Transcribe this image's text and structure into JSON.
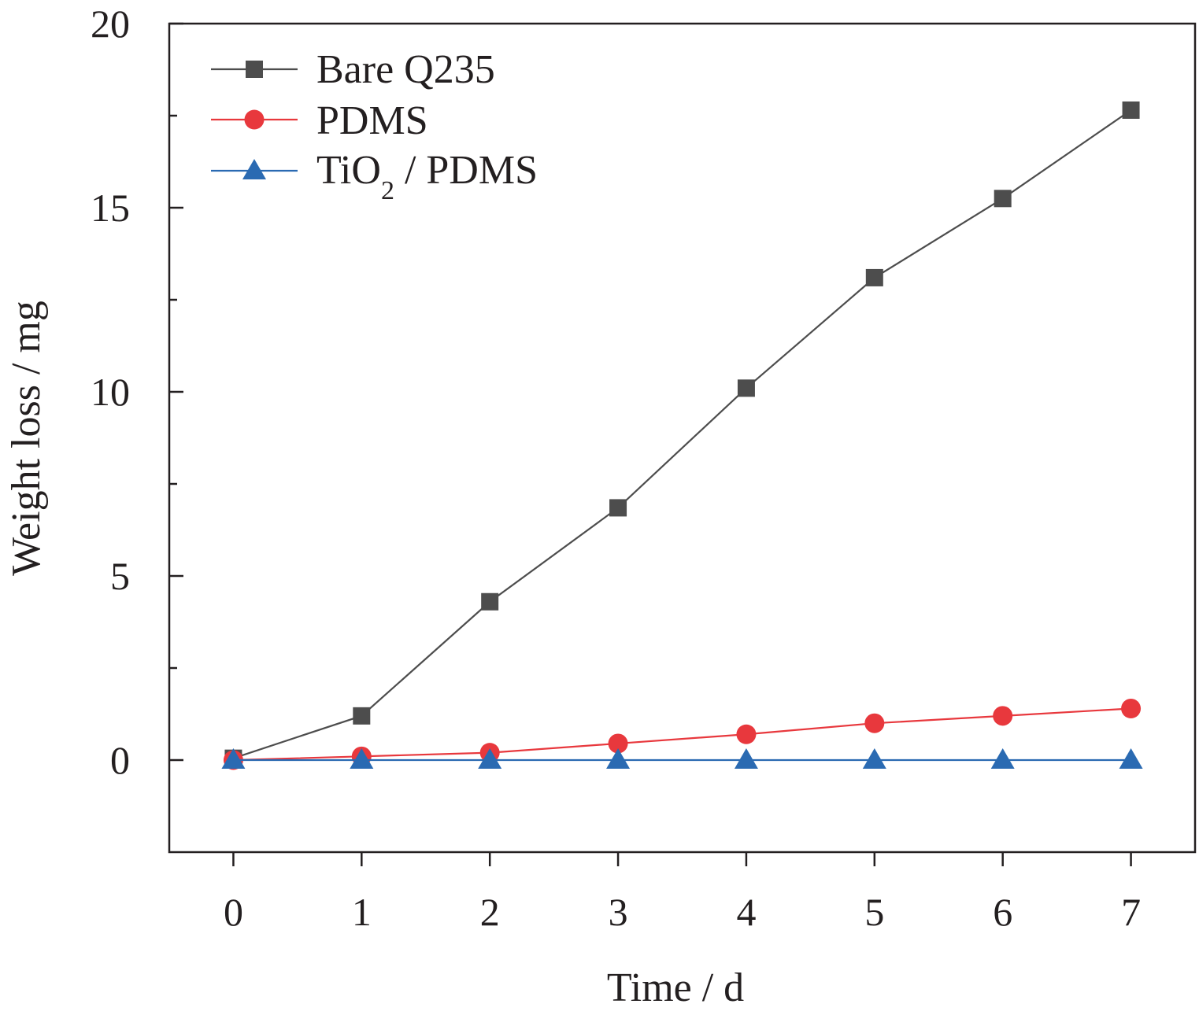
{
  "chart_data": {
    "type": "line",
    "title": "",
    "xlabel": "Time / d",
    "ylabel": "Weight loss / mg",
    "x": [
      0,
      1,
      2,
      3,
      4,
      5,
      6,
      7
    ],
    "xlim": [
      -0.5,
      7.5
    ],
    "ylim": [
      -2.5,
      20
    ],
    "xticks": [
      "0",
      "1",
      "2",
      "3",
      "4",
      "5",
      "6",
      "7"
    ],
    "yticks": [
      "0",
      "5",
      "10",
      "15",
      "20"
    ],
    "legend_position": "top-left",
    "series": [
      {
        "name": "Bare Q235",
        "marker": "square",
        "color": "#4d4d4d",
        "values": [
          0.05,
          1.2,
          4.3,
          6.85,
          10.1,
          13.1,
          15.25,
          17.65
        ]
      },
      {
        "name": "PDMS",
        "marker": "circle",
        "color": "#e8383d",
        "values": [
          0.0,
          0.1,
          0.2,
          0.45,
          0.7,
          1.0,
          1.2,
          1.4
        ]
      },
      {
        "name": "TiO2 / PDMS",
        "legend_base": "TiO",
        "legend_sub": "2",
        "legend_rest": " / PDMS",
        "marker": "triangle",
        "color": "#2a6ab2",
        "values": [
          0,
          0,
          0,
          0,
          0,
          0,
          0,
          0
        ]
      }
    ]
  }
}
